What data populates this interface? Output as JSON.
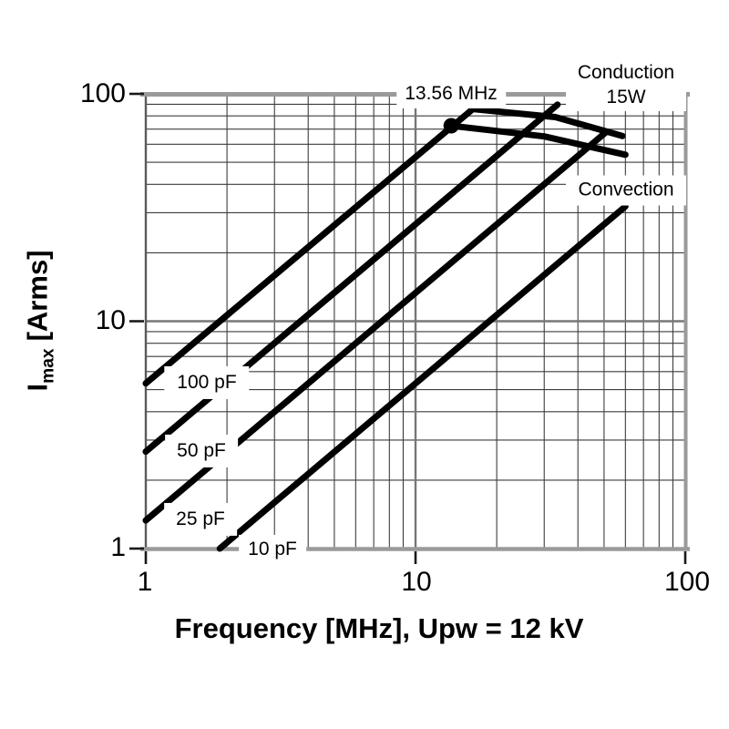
{
  "figure": {
    "x_axis": {
      "title": "Frequency [MHz], Upw = 12 kV",
      "tick_labels": [
        "1",
        "10",
        "100"
      ]
    },
    "y_axis": {
      "title_symbol": "I",
      "title_subscript": "max",
      "title_unit": "[Arms]",
      "tick_labels": [
        "100",
        "10",
        "1"
      ]
    },
    "annotations": {
      "marker_label": "13.56 MHz",
      "conduction_line1": "Conduction",
      "conduction_line2": "15W",
      "convection": "Convection",
      "cap_100": "100 pF",
      "cap_50": "50 pF",
      "cap_25": "25 pF",
      "cap_10": "10 pF"
    }
  },
  "colors": {
    "line": "#000000",
    "grid_minor": "#3d3d3d",
    "grid_major": "#777777",
    "border": "#9a9a9a",
    "border_left": "#5a5a5a",
    "tick": "#1a1a1a",
    "background": "#ffffff"
  },
  "chart_data": {
    "type": "line",
    "x_scale": "log",
    "y_scale": "log",
    "xlim": [
      1,
      100
    ],
    "ylim": [
      1,
      100
    ],
    "xlabel": "Frequency [MHz], Upw = 12 kV",
    "ylabel": "Imax [Arms]",
    "grid": "log minor and major gridlines on both axes",
    "legend_position": "none (labels drawn on lines)",
    "series": [
      {
        "name": "100 pF",
        "points": [
          [
            1,
            5.33
          ],
          [
            16.3,
            85.7
          ]
        ]
      },
      {
        "name": "50 pF",
        "points": [
          [
            1,
            2.67
          ],
          [
            33.6,
            89.7
          ]
        ]
      },
      {
        "name": "25 pF",
        "points": [
          [
            1,
            1.33
          ],
          [
            50.6,
            67.5
          ]
        ]
      },
      {
        "name": "10 pF",
        "points": [
          [
            1.88,
            1
          ],
          [
            60,
            32
          ]
        ]
      },
      {
        "name": "Conduction 15W",
        "points": [
          [
            16.3,
            85.7
          ],
          [
            33,
            79
          ],
          [
            58.5,
            65.3
          ]
        ]
      },
      {
        "name": "Convection",
        "points": [
          [
            13.56,
            72.4
          ],
          [
            30,
            65
          ],
          [
            60,
            54
          ]
        ]
      }
    ],
    "marker": {
      "x": 13.56,
      "y": 72.4,
      "label": "13.56 MHz"
    }
  }
}
